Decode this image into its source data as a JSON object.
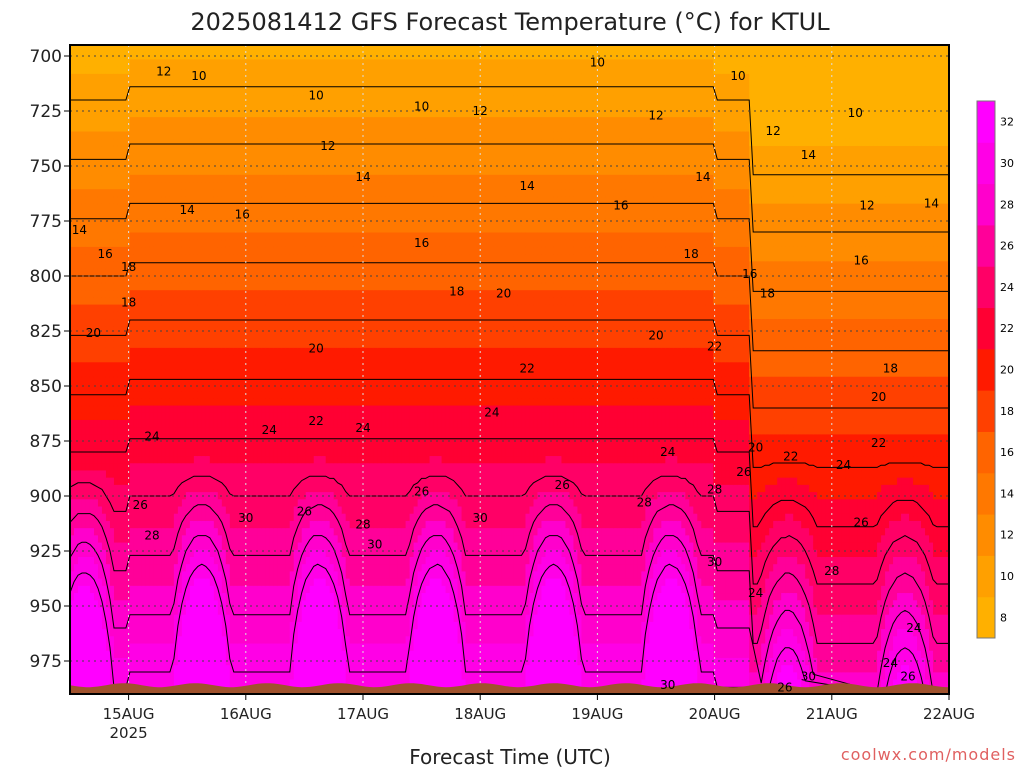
{
  "chart_data": {
    "type": "heatmap",
    "title": "2025081412 GFS Forecast Temperature (°C) for KTUL",
    "xlabel": "Forecast Time (UTC)",
    "ylabel": "",
    "credit": "coolwx.com/models",
    "y_scale": "pressure (hPa), inverted",
    "ylim": [
      990,
      695
    ],
    "yticks": [
      700,
      725,
      750,
      775,
      800,
      825,
      850,
      875,
      900,
      925,
      950,
      975
    ],
    "xticks": [
      {
        "label": "15AUG",
        "sub": "2025",
        "day": 15
      },
      {
        "label": "16AUG",
        "sub": "",
        "day": 16
      },
      {
        "label": "17AUG",
        "sub": "",
        "day": 17
      },
      {
        "label": "18AUG",
        "sub": "",
        "day": 18
      },
      {
        "label": "19AUG",
        "sub": "",
        "day": 19
      },
      {
        "label": "20AUG",
        "sub": "",
        "day": 20
      },
      {
        "label": "21AUG",
        "sub": "",
        "day": 21
      },
      {
        "label": "22AUG",
        "sub": "",
        "day": 22
      }
    ],
    "xlim_days": [
      14.5,
      22.0
    ],
    "colorbar": {
      "levels": [
        8,
        10,
        12,
        14,
        16,
        18,
        20,
        22,
        24,
        26,
        28,
        30,
        32
      ],
      "labels": [
        8,
        10,
        12,
        14,
        16,
        18,
        20,
        22,
        24,
        26,
        28,
        30,
        32
      ],
      "colors": [
        "#ffb000",
        "#ffa000",
        "#ff8c00",
        "#ff7800",
        "#ff6400",
        "#ff4000",
        "#ff1a00",
        "#ff0033",
        "#ff0066",
        "#ff0099",
        "#ff00cc",
        "#ff00e6",
        "#ff00ff"
      ]
    },
    "contour_labels": [
      {
        "t": 10,
        "day": 15.6,
        "p": 709
      },
      {
        "t": 12,
        "day": 15.3,
        "p": 707
      },
      {
        "t": 10,
        "day": 16.6,
        "p": 718
      },
      {
        "t": 12,
        "day": 16.7,
        "p": 741
      },
      {
        "t": 14,
        "day": 15.5,
        "day2": 0,
        "p": 770
      },
      {
        "t": 16,
        "day": 15.97,
        "p": 772
      },
      {
        "t": 14,
        "day": 14.58,
        "p": 779
      },
      {
        "t": 16,
        "day": 14.8,
        "p": 790
      },
      {
        "t": 18,
        "day": 15.0,
        "p": 812
      },
      {
        "t": 18,
        "day": 15.0,
        "p": 796
      },
      {
        "t": 20,
        "day": 14.7,
        "p": 826
      },
      {
        "t": 20,
        "day": 16.6,
        "p": 833
      },
      {
        "t": 22,
        "day": 16.6,
        "p": 866
      },
      {
        "t": 24,
        "day": 15.2,
        "p": 873
      },
      {
        "t": 26,
        "day": 15.1,
        "p": 904
      },
      {
        "t": 28,
        "day": 15.2,
        "p": 918
      },
      {
        "t": 30,
        "day": 16.0,
        "p": 910
      },
      {
        "t": 24,
        "day": 16.2,
        "p": 870
      },
      {
        "t": 26,
        "day": 16.5,
        "p": 907
      },
      {
        "t": 24,
        "day": 17.0,
        "p": 869
      },
      {
        "t": 28,
        "day": 17.0,
        "p": 913
      },
      {
        "t": 30,
        "day": 17.1,
        "p": 922
      },
      {
        "t": 26,
        "day": 17.5,
        "p": 898
      },
      {
        "t": 30,
        "day": 18.0,
        "p": 910
      },
      {
        "t": 14,
        "day": 17.0,
        "p": 755
      },
      {
        "t": 16,
        "day": 17.5,
        "p": 785
      },
      {
        "t": 18,
        "day": 17.8,
        "p": 807
      },
      {
        "t": 10,
        "day": 17.5,
        "p": 723
      },
      {
        "t": 12,
        "day": 18.0,
        "p": 725
      },
      {
        "t": 20,
        "day": 18.2,
        "p": 808
      },
      {
        "t": 22,
        "day": 18.4,
        "p": 842
      },
      {
        "t": 24,
        "day": 18.1,
        "p": 862
      },
      {
        "t": 14,
        "day": 18.4,
        "p": 759
      },
      {
        "t": 16,
        "day": 19.2,
        "p": 768
      },
      {
        "t": 10,
        "day": 19.0,
        "p": 703
      },
      {
        "t": 12,
        "day": 19.5,
        "p": 727
      },
      {
        "t": 26,
        "day": 18.7,
        "p": 895
      },
      {
        "t": 28,
        "day": 19.4,
        "p": 903
      },
      {
        "t": 24,
        "day": 19.6,
        "p": 880
      },
      {
        "t": 20,
        "day": 19.5,
        "p": 827
      },
      {
        "t": 18,
        "day": 19.8,
        "p": 790
      },
      {
        "t": 14,
        "day": 19.9,
        "p": 755
      },
      {
        "t": 10,
        "day": 20.2,
        "p": 709
      },
      {
        "t": 12,
        "day": 20.5,
        "p": 734
      },
      {
        "t": 16,
        "day": 20.3,
        "p": 799
      },
      {
        "t": 18,
        "day": 20.45,
        "p": 808
      },
      {
        "t": 22,
        "day": 20.0,
        "p": 832
      },
      {
        "t": 20,
        "day": 20.35,
        "p": 878
      },
      {
        "t": 26,
        "day": 20.25,
        "p": 889
      },
      {
        "t": 28,
        "day": 20.0,
        "p": 897
      },
      {
        "t": 30,
        "day": 20.0,
        "p": 930
      },
      {
        "t": 24,
        "day": 20.35,
        "p": 944
      },
      {
        "t": 22,
        "day": 20.65,
        "p": 882
      },
      {
        "t": 14,
        "day": 20.8,
        "p": 745
      },
      {
        "t": 12,
        "day": 21.3,
        "p": 768
      },
      {
        "t": 10,
        "day": 21.2,
        "p": 726
      },
      {
        "t": 16,
        "day": 21.25,
        "p": 793
      },
      {
        "t": 18,
        "day": 21.5,
        "p": 842
      },
      {
        "t": 20,
        "day": 21.4,
        "p": 855
      },
      {
        "t": 22,
        "day": 21.4,
        "p": 876
      },
      {
        "t": 24,
        "day": 21.1,
        "p": 886
      },
      {
        "t": 26,
        "day": 21.25,
        "p": 912
      },
      {
        "t": 28,
        "day": 21.0,
        "p": 934
      },
      {
        "t": 14,
        "day": 21.85,
        "p": 767
      },
      {
        "t": 24,
        "day": 21.7,
        "p": 960
      },
      {
        "t": 24,
        "day": 21.5,
        "p": 976
      },
      {
        "t": 26,
        "day": 21.65,
        "p": 982
      },
      {
        "t": 30,
        "day": 20.8,
        "p": 982
      },
      {
        "t": 26,
        "day": 20.6,
        "p": 987
      },
      {
        "t": 30,
        "day": 19.6,
        "p": 986
      }
    ]
  }
}
